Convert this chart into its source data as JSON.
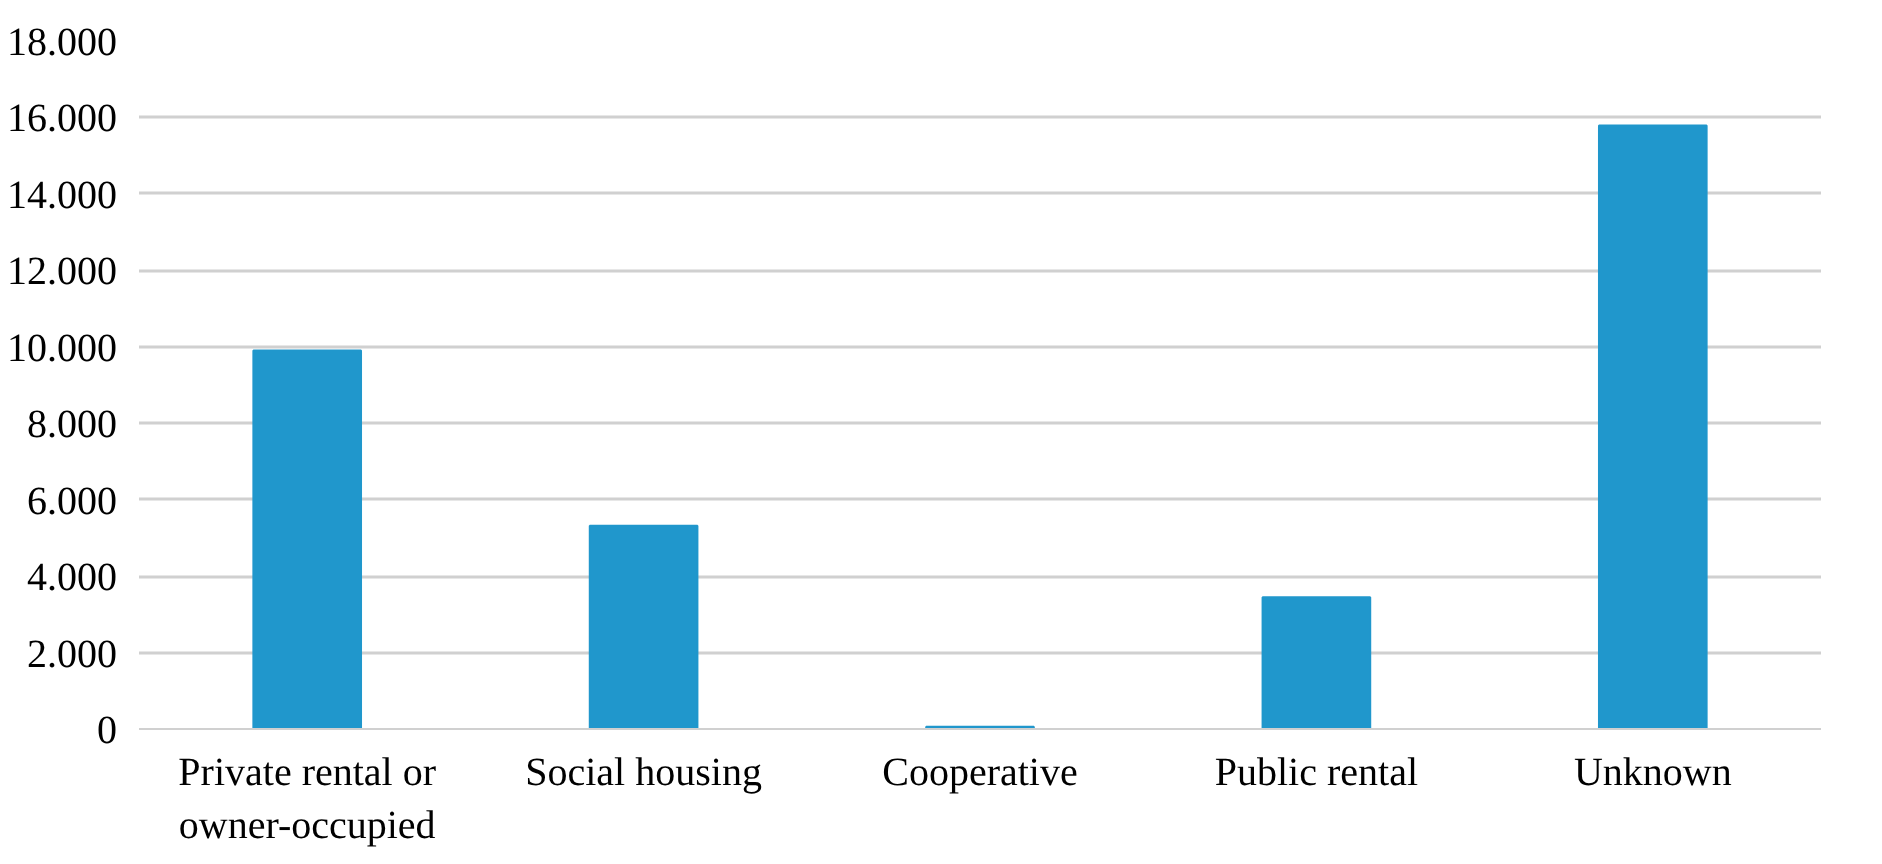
{
  "chart_data": {
    "type": "bar",
    "categories": [
      "Private rental or owner-occupied",
      "Social housing",
      "Cooperative",
      "Public rental",
      "Unknown"
    ],
    "values": [
      9900,
      5320,
      60,
      3450,
      15790
    ],
    "color": "#2097cc",
    "ylim": [
      0,
      18000
    ],
    "yticks": [
      {
        "value": 0,
        "label": "0"
      },
      {
        "value": 2000,
        "label": "2.000"
      },
      {
        "value": 4000,
        "label": "4.000"
      },
      {
        "value": 6000,
        "label": "6.000"
      },
      {
        "value": 8000,
        "label": "8.000"
      },
      {
        "value": 10000,
        "label": "10.000"
      },
      {
        "value": 12000,
        "label": "12.000"
      },
      {
        "value": 14000,
        "label": "14.000"
      },
      {
        "value": 16000,
        "label": "16.000"
      },
      {
        "value": 18000,
        "label": "18.000"
      }
    ],
    "grid": "y"
  }
}
